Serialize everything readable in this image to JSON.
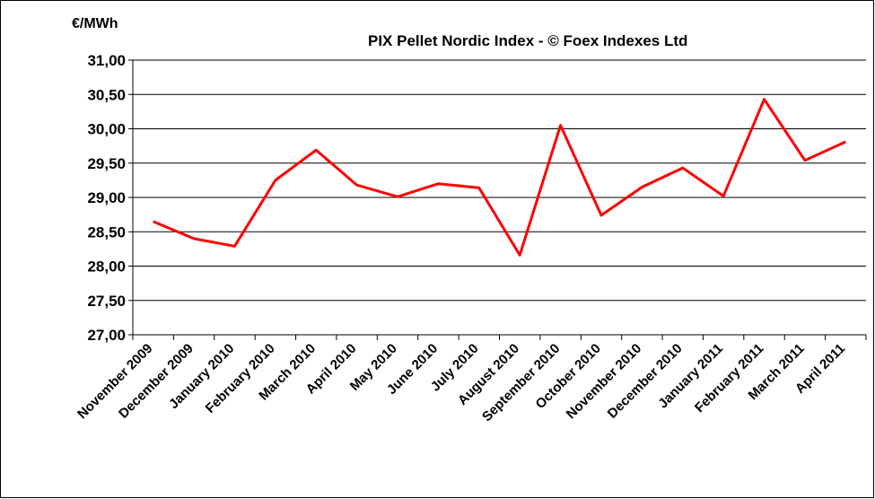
{
  "chart_data": {
    "type": "line",
    "title": "PIX Pellet Nordic Index - © Foex Indexes Ltd",
    "y_label": "€/MWh",
    "categories": [
      "November 2009",
      "December 2009",
      "January 2010",
      "February 2010",
      "March 2010",
      "April 2010",
      "May 2010",
      "June 2010",
      "July 2010",
      "August 2010",
      "September 2010",
      "October 2010",
      "November 2010",
      "December 2010",
      "January 2011",
      "February 2011",
      "March 2011",
      "April 2011"
    ],
    "series": [
      {
        "name": "PIX Pellet Nordic Index",
        "color": "#ff0000",
        "values": [
          28.65,
          28.4,
          28.29,
          29.25,
          29.69,
          29.18,
          29.01,
          29.2,
          29.14,
          28.16,
          30.05,
          28.74,
          29.15,
          29.43,
          29.02,
          30.43,
          29.54,
          29.81
        ]
      }
    ],
    "ylim": [
      27,
      31
    ],
    "yticks": [
      {
        "value": 27,
        "label": "27,00"
      },
      {
        "value": 27.5,
        "label": "27,50"
      },
      {
        "value": 28,
        "label": "28,00"
      },
      {
        "value": 28.5,
        "label": "28,50"
      },
      {
        "value": 29,
        "label": "29,00"
      },
      {
        "value": 29.5,
        "label": "29,50"
      },
      {
        "value": 30,
        "label": "30,00"
      },
      {
        "value": 30.5,
        "label": "30,50"
      },
      {
        "value": 31,
        "label": "31,00"
      }
    ],
    "grid": true
  }
}
